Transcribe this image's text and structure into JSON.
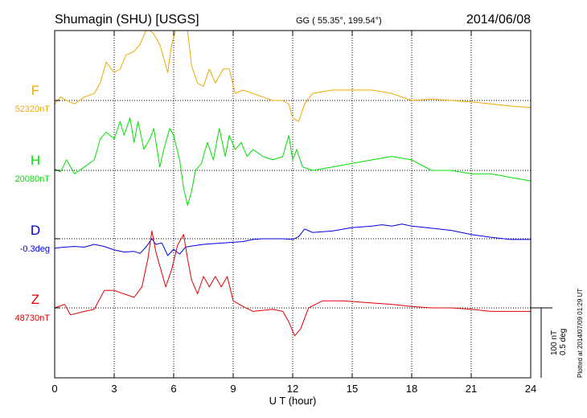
{
  "header": {
    "station": "Shumagin (SHU)  [USGS]",
    "coords": "GG ( 55.35°, 199.54°)",
    "date": "2014/06/08"
  },
  "side_note": "Plotted at 2014/07/09 01:29 UT",
  "scale_note": {
    "line1": "100 nT",
    "line2": "0.5 deg"
  },
  "colors": {
    "F": "#f0a800",
    "H": "#00e000",
    "D": "#0000e0",
    "Z": "#e00000",
    "axis": "#000000",
    "grid": "#000000"
  },
  "chart_data": {
    "type": "line",
    "title": "Shumagin (SHU)  [USGS]",
    "xlabel": "U T (hour)",
    "xlim": [
      0,
      24
    ],
    "x_ticks": [
      0,
      3,
      6,
      9,
      12,
      15,
      18,
      21,
      24
    ],
    "grid": "dotted",
    "series": [
      {
        "name": "F",
        "baseline_label": "52320nT",
        "baseline": 52320,
        "unit": "nT",
        "points": [
          [
            0,
            52315
          ],
          [
            0.3,
            52325
          ],
          [
            0.6,
            52320
          ],
          [
            1,
            52315
          ],
          [
            1.5,
            52325
          ],
          [
            2,
            52330
          ],
          [
            2.3,
            52345
          ],
          [
            2.6,
            52375
          ],
          [
            3,
            52360
          ],
          [
            3.3,
            52365
          ],
          [
            3.6,
            52385
          ],
          [
            4,
            52390
          ],
          [
            4.3,
            52400
          ],
          [
            4.6,
            52420
          ],
          [
            4.8,
            52430
          ],
          [
            5,
            52415
          ],
          [
            5.3,
            52400
          ],
          [
            5.5,
            52380
          ],
          [
            5.7,
            52360
          ],
          [
            5.9,
            52400
          ],
          [
            6.1,
            52430
          ],
          [
            6.4,
            52430
          ],
          [
            6.7,
            52420
          ],
          [
            6.9,
            52370
          ],
          [
            7.2,
            52345
          ],
          [
            7.5,
            52340
          ],
          [
            7.8,
            52365
          ],
          [
            8.1,
            52345
          ],
          [
            8.5,
            52365
          ],
          [
            8.8,
            52365
          ],
          [
            9.1,
            52330
          ],
          [
            9.5,
            52335
          ],
          [
            10,
            52330
          ],
          [
            10.5,
            52325
          ],
          [
            11,
            52320
          ],
          [
            11.5,
            52320
          ],
          [
            11.8,
            52315
          ],
          [
            12,
            52295
          ],
          [
            12.3,
            52290
          ],
          [
            12.6,
            52315
          ],
          [
            13,
            52330
          ],
          [
            14,
            52335
          ],
          [
            15,
            52335
          ],
          [
            16,
            52335
          ],
          [
            17,
            52330
          ],
          [
            18,
            52320
          ],
          [
            19,
            52322
          ],
          [
            20,
            52320
          ],
          [
            21,
            52318
          ],
          [
            22,
            52315
          ],
          [
            23,
            52312
          ],
          [
            24,
            52310
          ]
        ]
      },
      {
        "name": "H",
        "baseline_label": "20080nT",
        "baseline": 20080,
        "unit": "nT",
        "points": [
          [
            0,
            20082
          ],
          [
            0.3,
            20078
          ],
          [
            0.6,
            20095
          ],
          [
            1,
            20075
          ],
          [
            1.5,
            20085
          ],
          [
            2,
            20095
          ],
          [
            2.3,
            20125
          ],
          [
            2.6,
            20135
          ],
          [
            3,
            20125
          ],
          [
            3.3,
            20150
          ],
          [
            3.5,
            20130
          ],
          [
            3.8,
            20155
          ],
          [
            4,
            20120
          ],
          [
            4.2,
            20150
          ],
          [
            4.5,
            20110
          ],
          [
            4.8,
            20125
          ],
          [
            5,
            20140
          ],
          [
            5.3,
            20085
          ],
          [
            5.5,
            20110
          ],
          [
            5.8,
            20140
          ],
          [
            6,
            20130
          ],
          [
            6.3,
            20095
          ],
          [
            6.5,
            20055
          ],
          [
            6.7,
            20030
          ],
          [
            6.9,
            20050
          ],
          [
            7.1,
            20080
          ],
          [
            7.4,
            20090
          ],
          [
            7.7,
            20120
          ],
          [
            8,
            20095
          ],
          [
            8.3,
            20140
          ],
          [
            8.6,
            20100
          ],
          [
            8.8,
            20130
          ],
          [
            9.1,
            20110
          ],
          [
            9.4,
            20120
          ],
          [
            9.7,
            20100
          ],
          [
            10,
            20110
          ],
          [
            10.5,
            20100
          ],
          [
            11,
            20095
          ],
          [
            11.5,
            20100
          ],
          [
            11.8,
            20130
          ],
          [
            12,
            20095
          ],
          [
            12.2,
            20110
          ],
          [
            12.5,
            20085
          ],
          [
            13,
            20080
          ],
          [
            14,
            20085
          ],
          [
            15,
            20090
          ],
          [
            16,
            20095
          ],
          [
            17,
            20100
          ],
          [
            18,
            20095
          ],
          [
            19,
            20080
          ],
          [
            20,
            20080
          ],
          [
            21,
            20075
          ],
          [
            22,
            20075
          ],
          [
            23,
            20070
          ],
          [
            24,
            20065
          ]
        ]
      },
      {
        "name": "D",
        "baseline_label": "-0.3deg",
        "baseline": -0.3,
        "unit": "deg",
        "points": [
          [
            0,
            -0.368
          ],
          [
            0.5,
            -0.36
          ],
          [
            1,
            -0.355
          ],
          [
            1.5,
            -0.36
          ],
          [
            2,
            -0.34
          ],
          [
            2.5,
            -0.355
          ],
          [
            3,
            -0.38
          ],
          [
            3.5,
            -0.395
          ],
          [
            4,
            -0.39
          ],
          [
            4.3,
            -0.405
          ],
          [
            4.6,
            -0.36
          ],
          [
            4.9,
            -0.3
          ],
          [
            5.1,
            -0.34
          ],
          [
            5.4,
            -0.33
          ],
          [
            5.7,
            -0.42
          ],
          [
            6,
            -0.375
          ],
          [
            6.3,
            -0.41
          ],
          [
            6.6,
            -0.36
          ],
          [
            7,
            -0.35
          ],
          [
            7.5,
            -0.34
          ],
          [
            8,
            -0.335
          ],
          [
            8.5,
            -0.33
          ],
          [
            9,
            -0.325
          ],
          [
            9.5,
            -0.32
          ],
          [
            10,
            -0.305
          ],
          [
            10.5,
            -0.3
          ],
          [
            11,
            -0.3
          ],
          [
            11.5,
            -0.3
          ],
          [
            12,
            -0.305
          ],
          [
            12.3,
            -0.285
          ],
          [
            12.6,
            -0.23
          ],
          [
            13,
            -0.255
          ],
          [
            13.5,
            -0.25
          ],
          [
            14,
            -0.245
          ],
          [
            15,
            -0.22
          ],
          [
            16,
            -0.21
          ],
          [
            16.5,
            -0.2
          ],
          [
            17,
            -0.21
          ],
          [
            17.5,
            -0.195
          ],
          [
            18,
            -0.21
          ],
          [
            19,
            -0.225
          ],
          [
            20,
            -0.24
          ],
          [
            21,
            -0.27
          ],
          [
            22,
            -0.29
          ],
          [
            23,
            -0.305
          ],
          [
            24,
            -0.305
          ]
        ]
      },
      {
        "name": "Z",
        "baseline_label": "48730nT",
        "baseline": 48730,
        "unit": "nT",
        "points": [
          [
            0,
            48730
          ],
          [
            0.5,
            48735
          ],
          [
            0.8,
            48720
          ],
          [
            1.5,
            48725
          ],
          [
            2,
            48728
          ],
          [
            2.5,
            48755
          ],
          [
            3,
            48755
          ],
          [
            3.5,
            48750
          ],
          [
            4,
            48745
          ],
          [
            4.4,
            48760
          ],
          [
            4.7,
            48800
          ],
          [
            4.9,
            48840
          ],
          [
            5.1,
            48810
          ],
          [
            5.3,
            48790
          ],
          [
            5.6,
            48760
          ],
          [
            5.9,
            48785
          ],
          [
            6.2,
            48820
          ],
          [
            6.5,
            48835
          ],
          [
            6.7,
            48800
          ],
          [
            6.9,
            48770
          ],
          [
            7.2,
            48750
          ],
          [
            7.5,
            48775
          ],
          [
            7.8,
            48760
          ],
          [
            8.1,
            48775
          ],
          [
            8.4,
            48760
          ],
          [
            8.7,
            48775
          ],
          [
            9,
            48740
          ],
          [
            9.5,
            48732
          ],
          [
            10,
            48725
          ],
          [
            11,
            48728
          ],
          [
            11.5,
            48725
          ],
          [
            11.8,
            48710
          ],
          [
            12.1,
            48690
          ],
          [
            12.4,
            48700
          ],
          [
            12.8,
            48730
          ],
          [
            13.5,
            48740
          ],
          [
            14.5,
            48740
          ],
          [
            15.5,
            48738
          ],
          [
            17,
            48735
          ],
          [
            18,
            48732
          ],
          [
            19,
            48730
          ],
          [
            20,
            48730
          ],
          [
            21,
            48728
          ],
          [
            22,
            48725
          ],
          [
            23,
            48725
          ],
          [
            24,
            48725
          ]
        ]
      }
    ]
  }
}
